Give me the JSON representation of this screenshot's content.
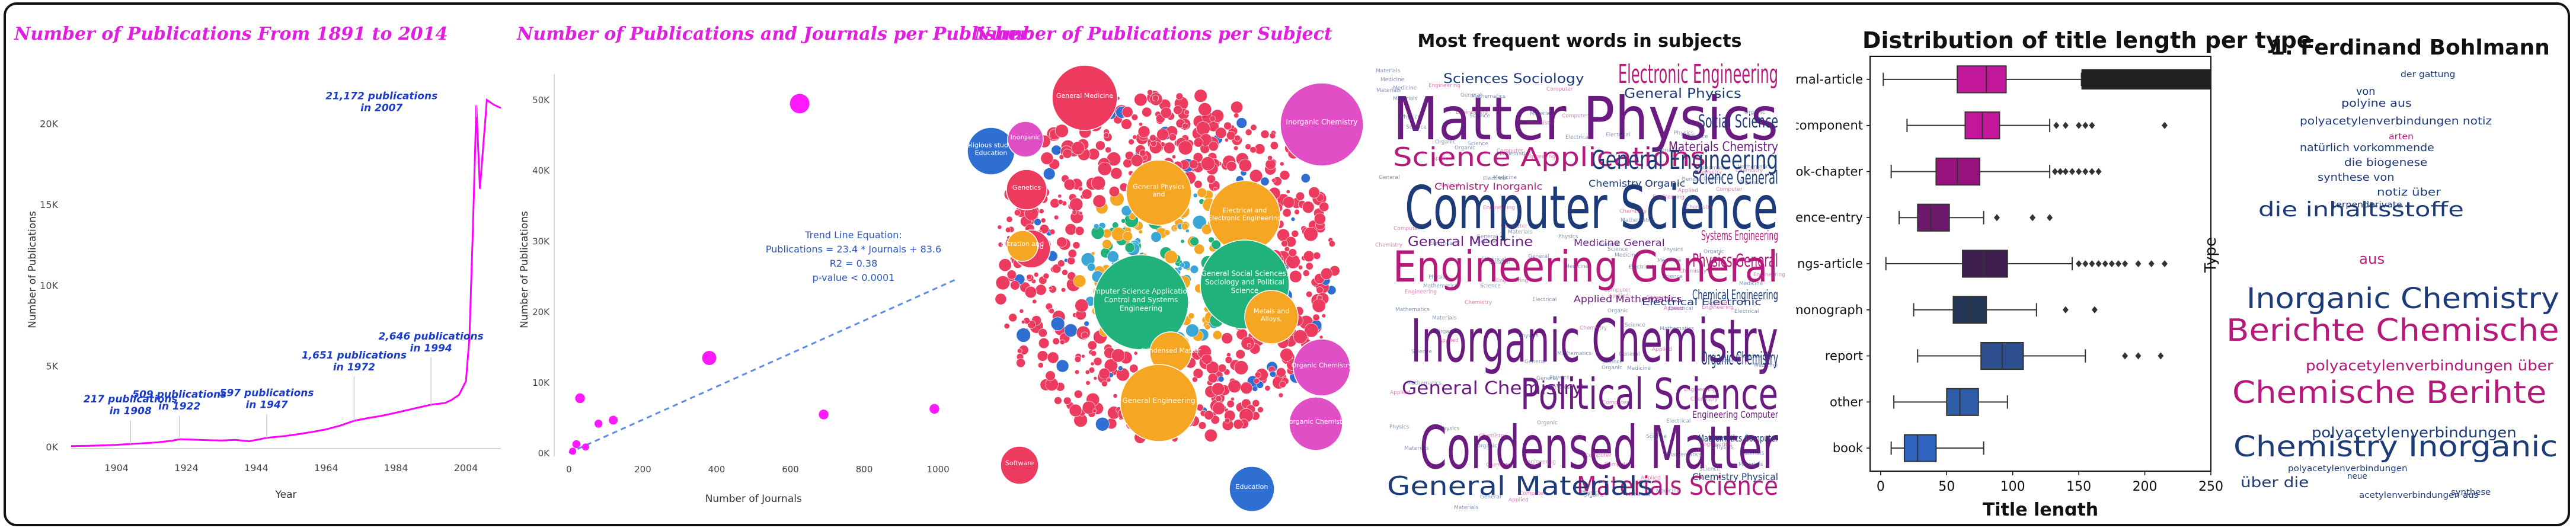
{
  "colors": {
    "magenta": "#ff00ff",
    "title_magenta": "#e11ee0",
    "annotation_blue": "#1a3cc8",
    "trend_blue": "#5b8ee6",
    "bubble_red": "#ec3b5f",
    "bubble_orange": "#f5a623",
    "bubble_green": "#20b27a",
    "bubble_blue": "#2e6fd1",
    "bubble_pink": "#e04fc6",
    "wc_purple": "#6a1b7f",
    "wc_navy": "#1d3b78",
    "wc_magenta": "#b5197a"
  },
  "panels": {
    "timeline": {
      "title": "Number of Publications From 1891 to 2014"
    },
    "publisher": {
      "title": "Number of Publications and Journals per Publisher"
    },
    "subject": {
      "title": "Number of Publications per Subject"
    },
    "wordcloud": {
      "title": "Most frequent words in subjects"
    },
    "boxplot": {
      "title": "Distribution of title length per type"
    },
    "author": {
      "title": "1. Ferdinand Bohlmann"
    }
  },
  "chart_data": [
    {
      "type": "line",
      "title": "Number of Publications From 1891 to 2014",
      "xlabel": "Year",
      "ylabel": "Number of Publications",
      "xlim": [
        1891,
        2014
      ],
      "ylim": [
        0,
        22000
      ],
      "x_ticks": [
        "1904",
        "1924",
        "1944",
        "1964",
        "1984",
        "2004"
      ],
      "y_ticks": [
        "0K",
        "5K",
        "10K",
        "15K",
        "20K"
      ],
      "x": [
        1891,
        1896,
        1900,
        1904,
        1908,
        1912,
        1916,
        1920,
        1922,
        1926,
        1930,
        1934,
        1938,
        1942,
        1947,
        1952,
        1956,
        1960,
        1964,
        1968,
        1972,
        1976,
        1980,
        1984,
        1988,
        1992,
        1994,
        1998,
        2000,
        2002,
        2004,
        2005,
        2006,
        2007,
        2008,
        2010,
        2012,
        2014
      ],
      "y": [
        80,
        100,
        130,
        160,
        217,
        260,
        320,
        420,
        509,
        480,
        450,
        430,
        470,
        380,
        597,
        700,
        820,
        960,
        1120,
        1350,
        1651,
        1820,
        1960,
        2150,
        2350,
        2550,
        2646,
        2750,
        2950,
        3250,
        4100,
        6800,
        13500,
        21172,
        16000,
        21500,
        21200,
        21000
      ],
      "annotations": [
        {
          "text": "217 publications\nin 1908",
          "x": 1908,
          "y": 217
        },
        {
          "text": "509 publications\nin 1922",
          "x": 1922,
          "y": 509
        },
        {
          "text": "597 publications\nin 1947",
          "x": 1947,
          "y": 597
        },
        {
          "text": "1,651 publications\nin 1972",
          "x": 1972,
          "y": 1651
        },
        {
          "text": "2,646 publications\nin 1994",
          "x": 1994,
          "y": 2646
        },
        {
          "text": "21,172 publications\nin 2007",
          "x": 2007,
          "y": 21172
        }
      ]
    },
    {
      "type": "scatter",
      "title": "Number of Publications and Journals per Publisher",
      "xlabel": "Number of Journals",
      "ylabel": "Number of Publications",
      "xlim": [
        -40,
        1060
      ],
      "ylim": [
        0,
        52000
      ],
      "x_ticks": [
        "0",
        "200",
        "400",
        "600",
        "800",
        "1000"
      ],
      "y_ticks": [
        "0K",
        "10K",
        "20K",
        "30K",
        "40K",
        "50K"
      ],
      "points": [
        {
          "x": 625,
          "y": 49500,
          "size": 22
        },
        {
          "x": 380,
          "y": 13500,
          "size": 16
        },
        {
          "x": 30,
          "y": 7800,
          "size": 11
        },
        {
          "x": 690,
          "y": 5500,
          "size": 11
        },
        {
          "x": 990,
          "y": 6300,
          "size": 11
        },
        {
          "x": 120,
          "y": 4700,
          "size": 10
        },
        {
          "x": 80,
          "y": 4200,
          "size": 9
        },
        {
          "x": 20,
          "y": 1300,
          "size": 9
        },
        {
          "x": 10,
          "y": 300,
          "size": 8
        },
        {
          "x": 45,
          "y": 900,
          "size": 8
        }
      ],
      "trend": {
        "slope": 23.4,
        "intercept": 83.6,
        "label_lines": [
          "Trend Line Equation:",
          "Publications = 23.4 * Journals + 83.6",
          "R2 = 0.38",
          "p-value < 0.0001"
        ]
      }
    },
    {
      "type": "bubble",
      "title": "Number of Publications per Subject",
      "labeled_bubbles": [
        {
          "label": "General Medicine",
          "color": "red"
        },
        {
          "label": "Inorganic Chemistry",
          "color": "pink"
        },
        {
          "label": "Religious studies, Education",
          "color": "blue"
        },
        {
          "label": "Inorganic",
          "color": "pink"
        },
        {
          "label": "Genetics",
          "color": "red"
        },
        {
          "label": "Applied",
          "color": "red"
        },
        {
          "label": "General Physics and",
          "color": "orange"
        },
        {
          "label": "Electrical and Electronic Engineering",
          "color": "orange"
        },
        {
          "label": "Filtration and",
          "color": "orange"
        },
        {
          "label": "Computer Science Applications, Control and Systems Engineering",
          "color": "green"
        },
        {
          "label": "General Social Sciences, Sociology and Political Science",
          "color": "green"
        },
        {
          "label": "Metals and Alloys,",
          "color": "orange"
        },
        {
          "label": "Condensed Matter",
          "color": "orange"
        },
        {
          "label": "Organic Chemistry",
          "color": "pink"
        },
        {
          "label": "General Engineering",
          "color": "orange"
        },
        {
          "label": "Inorganic Chemistry",
          "color": "pink"
        },
        {
          "label": "Software",
          "color": "red"
        },
        {
          "label": "Education",
          "color": "blue"
        }
      ]
    },
    {
      "type": "wordcloud",
      "title": "Most frequent words in subjects",
      "words": [
        {
          "text": "Matter Physics",
          "rank": 1,
          "color": "purple"
        },
        {
          "text": "Computer Science",
          "rank": 1,
          "color": "navy"
        },
        {
          "text": "Inorganic Chemistry",
          "rank": 1,
          "color": "purple"
        },
        {
          "text": "Condensed Matter",
          "rank": 1,
          "color": "purple"
        },
        {
          "text": "Engineering General",
          "rank": 2,
          "color": "magenta"
        },
        {
          "text": "Political Science",
          "rank": 2,
          "color": "purple"
        },
        {
          "text": "Science Applications",
          "rank": 3,
          "color": "magenta"
        },
        {
          "text": "General Engineering",
          "rank": 3,
          "color": "navy"
        },
        {
          "text": "Electronic Engineering",
          "rank": 3,
          "color": "magenta"
        },
        {
          "text": "Materials Science",
          "rank": 3,
          "color": "magenta"
        },
        {
          "text": "General Materials",
          "rank": 3,
          "color": "navy"
        },
        {
          "text": "Social Science",
          "rank": 4,
          "color": "navy"
        },
        {
          "text": "Science General",
          "rank": 4,
          "color": "navy"
        },
        {
          "text": "Physics General",
          "rank": 4,
          "color": "magenta"
        },
        {
          "text": "Organic Chemistry",
          "rank": 4,
          "color": "navy"
        },
        {
          "text": "General Chemistry",
          "rank": 4,
          "color": "purple"
        },
        {
          "text": "General Medicine",
          "rank": 5,
          "color": "purple"
        },
        {
          "text": "Systems Engineering",
          "rank": 5,
          "color": "magenta"
        },
        {
          "text": "Chemical Engineering",
          "rank": 5,
          "color": "navy"
        },
        {
          "text": "Sciences Sociology",
          "rank": 5,
          "color": "navy"
        },
        {
          "text": "General Physics",
          "rank": 5,
          "color": "navy"
        },
        {
          "text": "Materials Chemistry",
          "rank": 5,
          "color": "purple"
        },
        {
          "text": "Chemistry Inorganic",
          "rank": 6,
          "color": "magenta"
        },
        {
          "text": "Chemistry Organic",
          "rank": 6,
          "color": "navy"
        },
        {
          "text": "Medicine General",
          "rank": 6,
          "color": "purple"
        },
        {
          "text": "Electrical Electronic",
          "rank": 6,
          "color": "navy"
        },
        {
          "text": "Applied Mathematics",
          "rank": 6,
          "color": "purple"
        },
        {
          "text": "Chemistry Physical",
          "rank": 6,
          "color": "navy"
        },
        {
          "text": "Engineering Computer",
          "rank": 6,
          "color": "purple"
        },
        {
          "text": "Mathematics Computer",
          "rank": 6,
          "color": "navy"
        }
      ]
    },
    {
      "type": "boxplot",
      "title": "Distribution of title length per type",
      "xlabel": "Title length",
      "ylabel": "Type",
      "xlim": [
        -8,
        250
      ],
      "x_ticks": [
        "0",
        "50",
        "100",
        "150",
        "200",
        "250"
      ],
      "categories": [
        "journal-article",
        "component",
        "book-chapter",
        "reference-entry",
        "proceedings-article",
        "monograph",
        "report",
        "other",
        "book"
      ],
      "boxes": [
        {
          "category": "journal-article",
          "whisker_low": 2,
          "q1": 58,
          "median": 80,
          "q3": 95,
          "whisker_high": 152,
          "outlier_band": [
            152,
            250
          ],
          "outliers": [],
          "color": "#c2179a"
        },
        {
          "category": "component",
          "whisker_low": 20,
          "q1": 64,
          "median": 77,
          "q3": 90,
          "whisker_high": 128,
          "outliers": [
            133,
            140,
            150,
            155,
            160,
            215
          ],
          "color": "#c2179a"
        },
        {
          "category": "book-chapter",
          "whisker_low": 8,
          "q1": 42,
          "median": 58,
          "q3": 75,
          "whisker_high": 128,
          "outliers": [
            132,
            136,
            140,
            145,
            150,
            155,
            160,
            165
          ],
          "color": "#96137e"
        },
        {
          "category": "reference-entry",
          "whisker_low": 14,
          "q1": 28,
          "median": 38,
          "q3": 52,
          "whisker_high": 78,
          "outliers": [
            88,
            115,
            128
          ],
          "color": "#6e1a6c"
        },
        {
          "category": "proceedings-article",
          "whisker_low": 4,
          "q1": 62,
          "median": 78,
          "q3": 96,
          "whisker_high": 145,
          "outliers": [
            150,
            155,
            160,
            165,
            170,
            175,
            180,
            185,
            195,
            205,
            215
          ],
          "color": "#3d1e4f"
        },
        {
          "category": "monograph",
          "whisker_low": 25,
          "q1": 55,
          "median": 68,
          "q3": 80,
          "whisker_high": 118,
          "outliers": [
            140,
            162
          ],
          "color": "#233655"
        },
        {
          "category": "report",
          "whisker_low": 28,
          "q1": 76,
          "median": 92,
          "q3": 108,
          "whisker_high": 155,
          "outliers": [
            185,
            195,
            212
          ],
          "color": "#2d4f8f"
        },
        {
          "category": "other",
          "whisker_low": 10,
          "q1": 50,
          "median": 60,
          "q3": 74,
          "whisker_high": 96,
          "outliers": [],
          "color": "#2e5ea8"
        },
        {
          "category": "book",
          "whisker_low": 8,
          "q1": 18,
          "median": 28,
          "q3": 42,
          "whisker_high": 78,
          "outliers": [],
          "color": "#2f63c2"
        }
      ]
    },
    {
      "type": "wordcloud",
      "title": "1. Ferdinand Bohlmann",
      "words": [
        {
          "text": "Berichte Chemische",
          "rank": 1,
          "color": "magenta"
        },
        {
          "text": "Chemische Berihte",
          "rank": 1,
          "color": "magenta"
        },
        {
          "text": "Inorganic Chemistry",
          "rank": 2,
          "color": "navy"
        },
        {
          "text": "Chemistry Inorganic",
          "rank": 2,
          "color": "navy"
        },
        {
          "text": "die inhaltsstoffe",
          "rank": 3,
          "color": "navy"
        },
        {
          "text": "polyacetylenverbindungen über",
          "rank": 4,
          "color": "magenta"
        },
        {
          "text": "polyacetylenverbindungen",
          "rank": 4,
          "color": "navy"
        },
        {
          "text": "über die",
          "rank": 4,
          "color": "navy"
        },
        {
          "text": "aus",
          "rank": 4,
          "color": "magenta"
        },
        {
          "text": "notiz über",
          "rank": 5,
          "color": "navy"
        },
        {
          "text": "polyacetylenverbindungen notiz",
          "rank": 5,
          "color": "navy"
        },
        {
          "text": "die biogenese",
          "rank": 5,
          "color": "navy"
        },
        {
          "text": "polyine aus",
          "rank": 5,
          "color": "navy"
        },
        {
          "text": "natürlich vorkommende",
          "rank": 5,
          "color": "navy"
        },
        {
          "text": "synthese von",
          "rank": 5,
          "color": "navy"
        },
        {
          "text": "von",
          "rank": 5,
          "color": "navy"
        },
        {
          "text": "arten",
          "rank": 6,
          "color": "magenta"
        },
        {
          "text": "der gattung",
          "rank": 6,
          "color": "navy"
        },
        {
          "text": "terpenderivate",
          "rank": 6,
          "color": "navy"
        },
        {
          "text": "neue",
          "rank": 6,
          "color": "navy"
        },
        {
          "text": "synthese",
          "rank": 6,
          "color": "navy"
        },
        {
          "text": "acetylenverbindungen aus",
          "rank": 6,
          "color": "navy"
        },
        {
          "text": "polyacetylenverbindungen",
          "rank": 6,
          "color": "navy"
        }
      ]
    }
  ]
}
